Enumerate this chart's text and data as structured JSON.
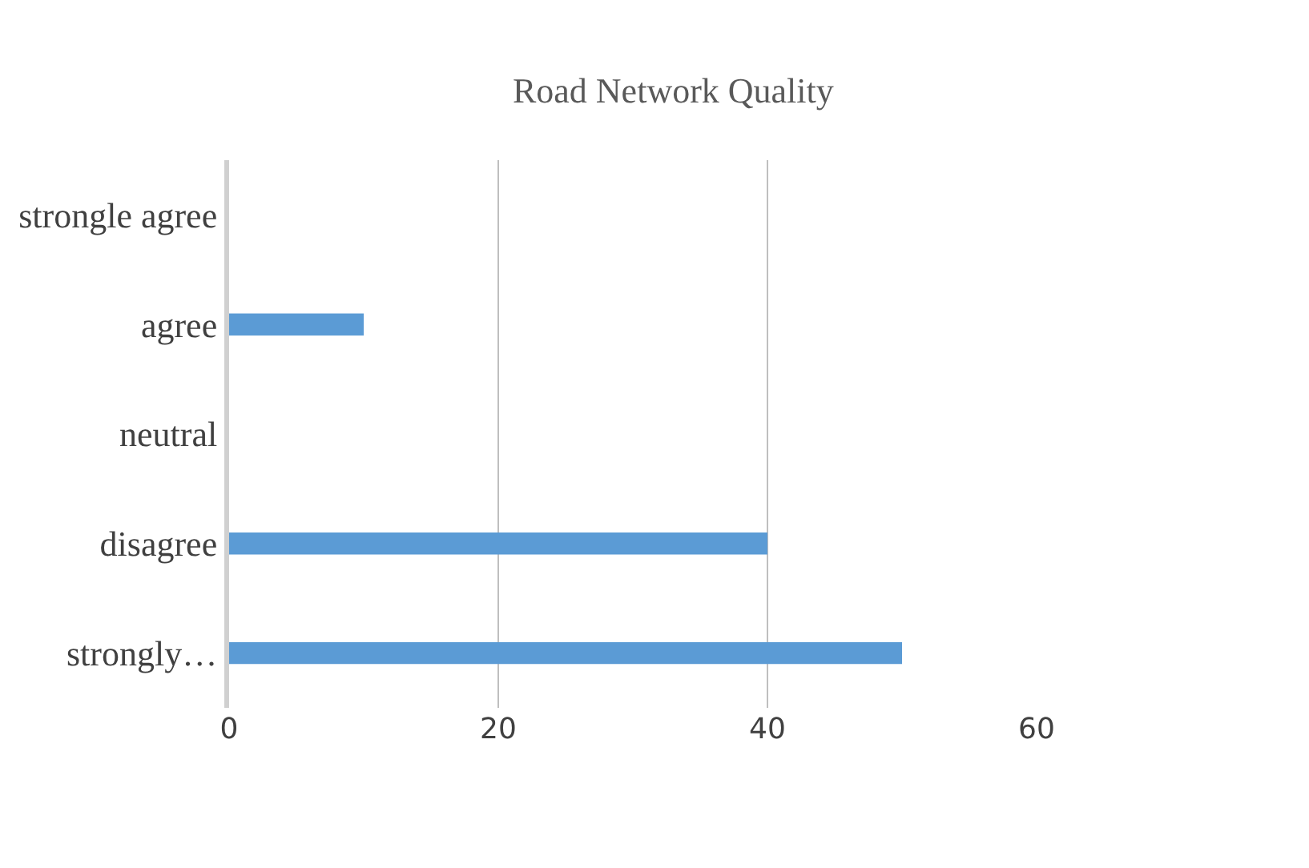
{
  "chart_data": {
    "type": "bar",
    "orientation": "horizontal",
    "title": "Road Network Quality",
    "categories": [
      "strongle agree",
      "agree",
      "neutral",
      "disagree",
      "strongly…"
    ],
    "values": [
      0,
      10,
      0,
      40,
      50
    ],
    "color": "#5b9bd5",
    "xlim": [
      0,
      60
    ],
    "xticks": [
      0,
      20,
      40,
      60
    ],
    "grid": "x"
  }
}
